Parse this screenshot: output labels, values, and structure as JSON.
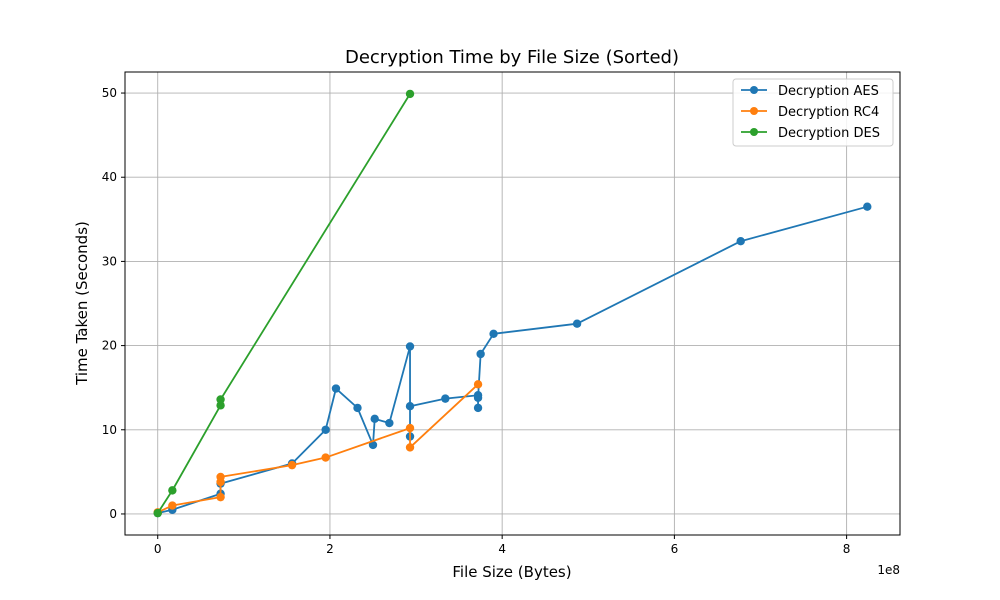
{
  "chart_data": {
    "type": "line",
    "title": "Decryption Time by File Size (Sorted)",
    "xlabel": "File Size (Bytes)",
    "ylabel": "Time Taken (Seconds)",
    "x_offset_label": "1e8",
    "xlim": [
      -0.38,
      8.62
    ],
    "ylim": [
      -2.5,
      52.5
    ],
    "x_ticks": [
      0,
      2,
      4,
      6,
      8
    ],
    "x_tick_labels": [
      "0",
      "2",
      "4",
      "6",
      "8"
    ],
    "y_ticks": [
      0,
      10,
      20,
      30,
      40,
      50
    ],
    "y_tick_labels": [
      "0",
      "10",
      "20",
      "30",
      "40",
      "50"
    ],
    "grid": true,
    "legend_position": "top-right",
    "series": [
      {
        "name": "Decryption AES",
        "color": "#1f77b4",
        "x": [
          0.0,
          0.17,
          0.73,
          0.73,
          1.56,
          1.95,
          2.07,
          2.32,
          2.5,
          2.52,
          2.69,
          2.93,
          2.93,
          2.93,
          3.34,
          3.72,
          3.72,
          3.72,
          3.75,
          3.9,
          4.87,
          6.77,
          8.24
        ],
        "y": [
          0.1,
          0.5,
          2.4,
          3.6,
          6.0,
          10.0,
          14.9,
          12.6,
          8.2,
          11.3,
          10.8,
          19.9,
          9.2,
          12.8,
          13.7,
          14.1,
          12.6,
          13.8,
          19.0,
          21.4,
          22.6,
          32.4,
          36.5
        ]
      },
      {
        "name": "Decryption RC4",
        "color": "#ff7f0e",
        "x": [
          0.0,
          0.17,
          0.73,
          0.73,
          0.73,
          1.56,
          1.95,
          2.93,
          2.93,
          3.72
        ],
        "y": [
          0.2,
          1.0,
          2.0,
          3.8,
          4.4,
          5.8,
          6.7,
          10.2,
          7.9,
          15.4
        ]
      },
      {
        "name": "Decryption DES",
        "color": "#2ca02c",
        "x": [
          0.0,
          0.17,
          0.73,
          0.73,
          2.93
        ],
        "y": [
          0.1,
          2.8,
          12.9,
          13.6,
          49.9
        ]
      }
    ]
  }
}
